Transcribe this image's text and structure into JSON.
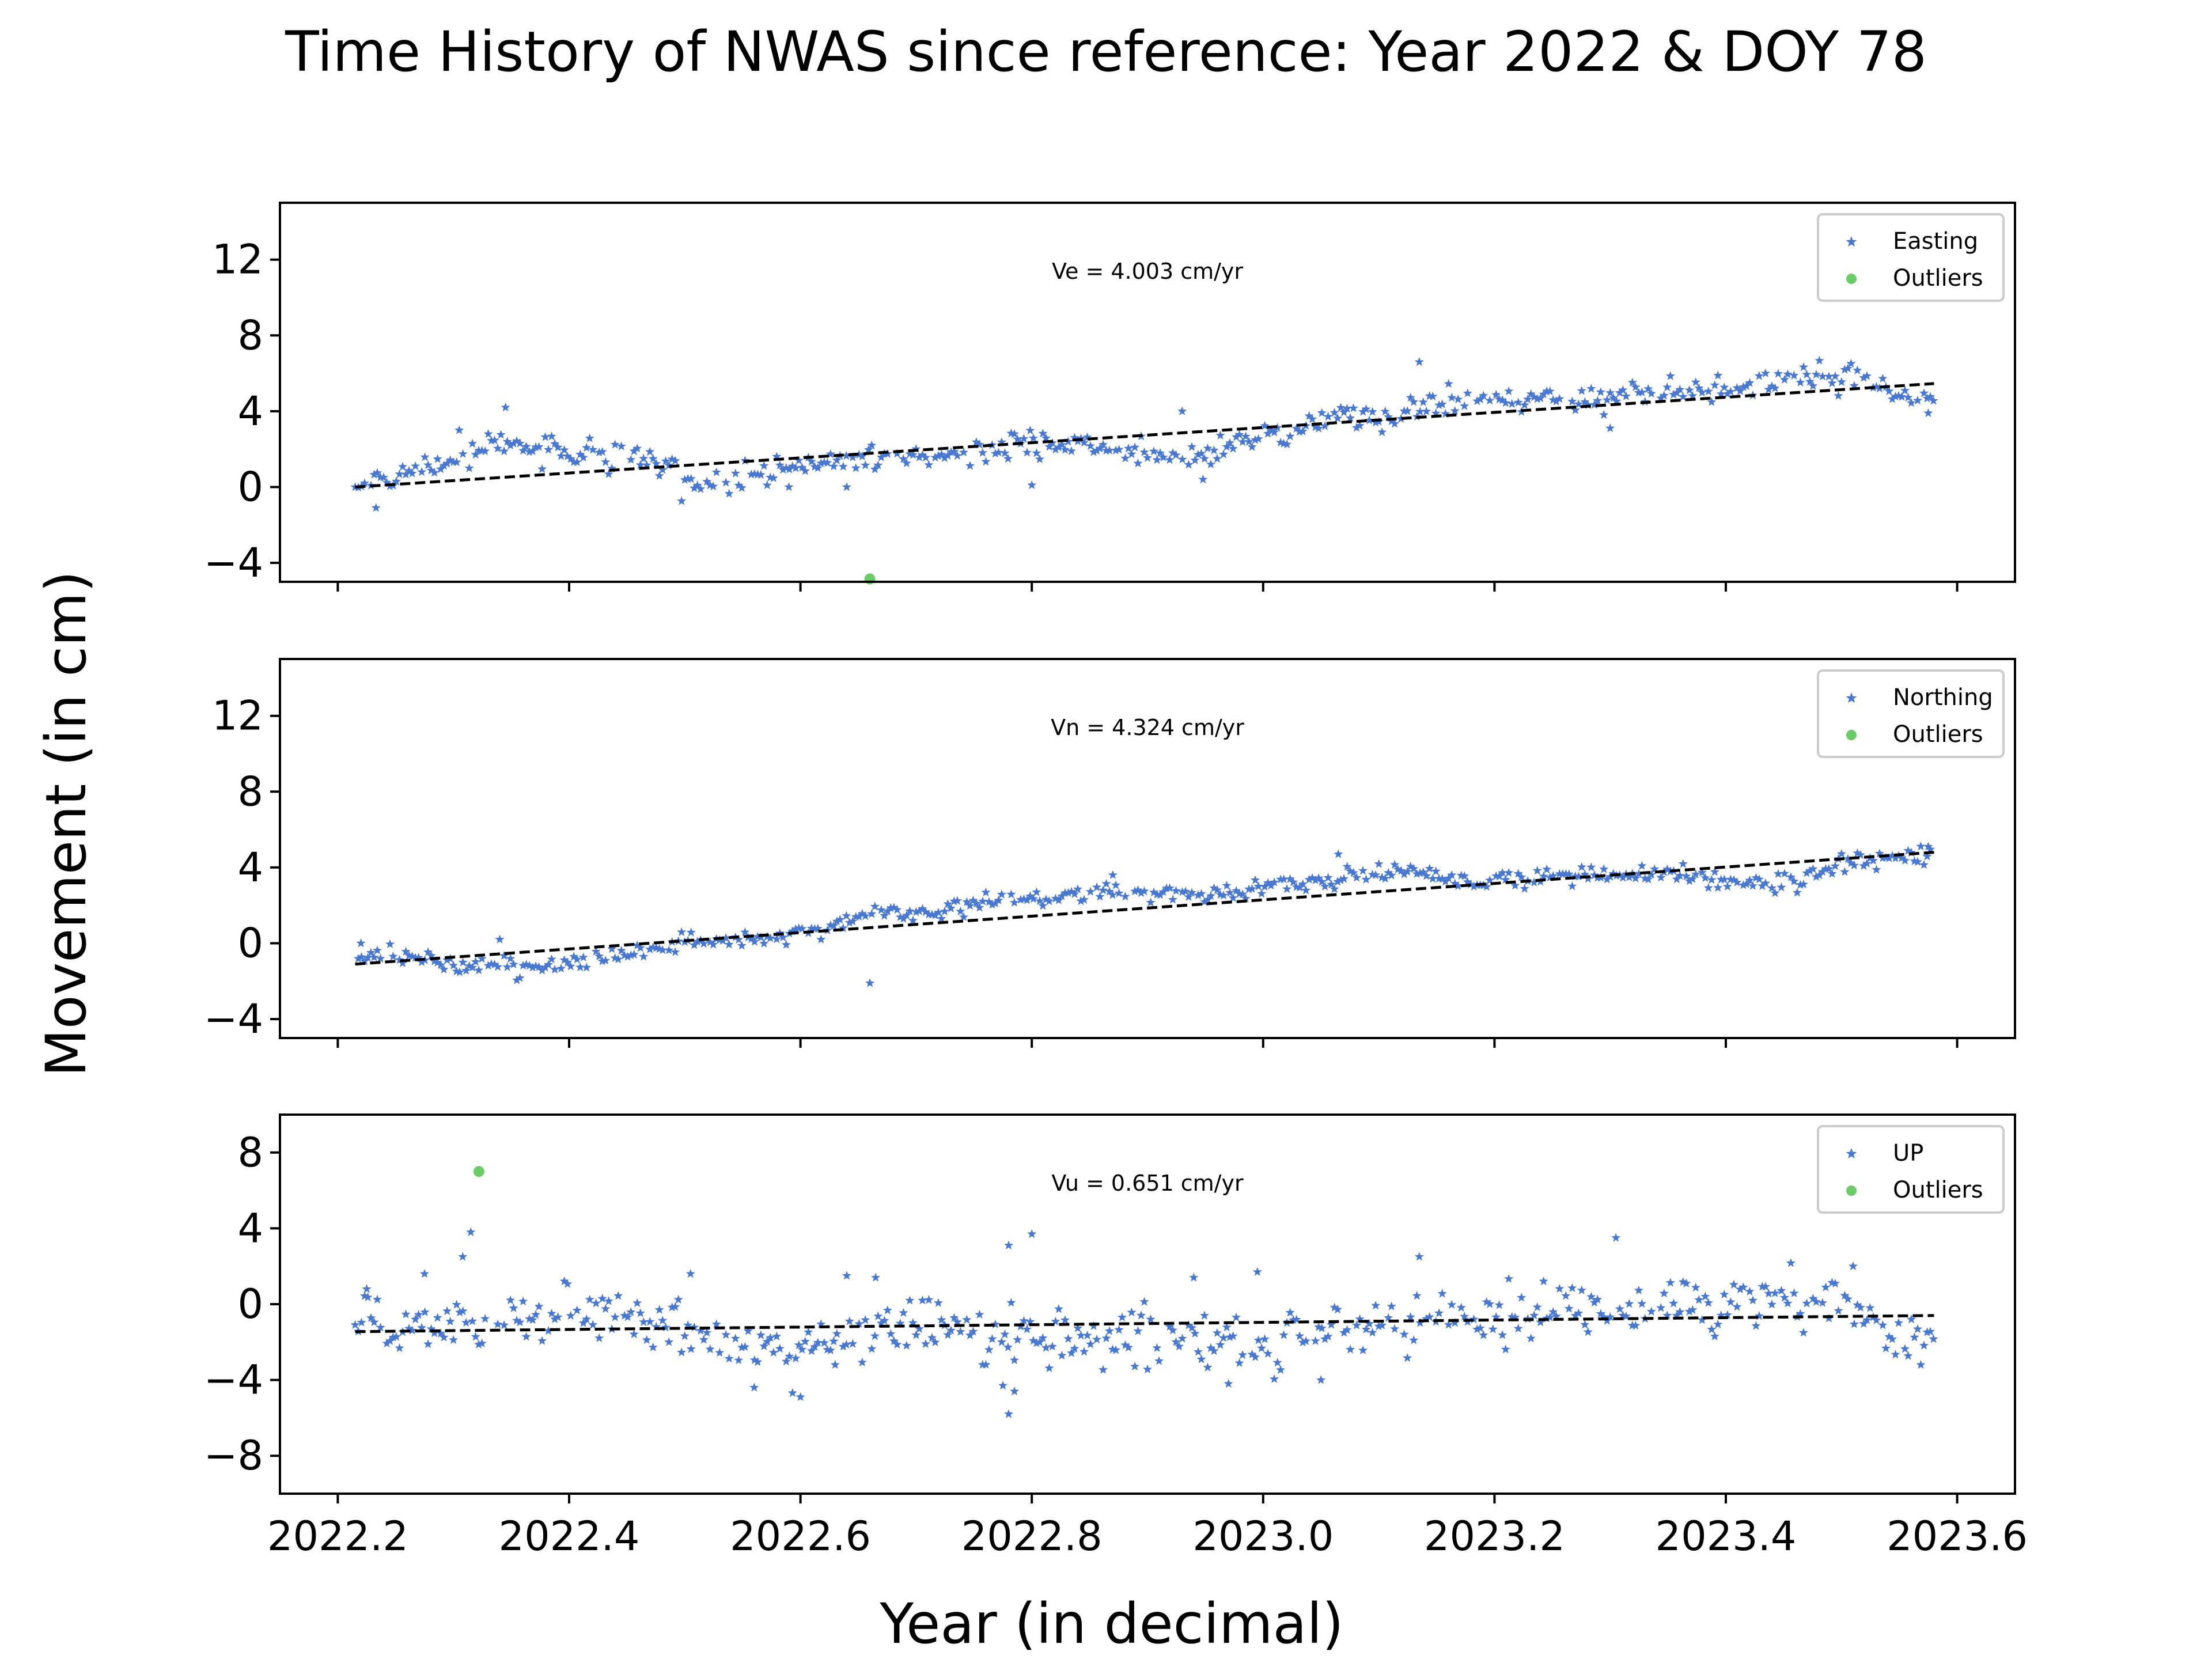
{
  "figure": {
    "title": "Time History of NWAS since reference: Year 2022 & DOY 78",
    "xlabel": "Year (in decimal)",
    "ylabel": "Movement (in cm)"
  },
  "colors": {
    "data": "#4878CF",
    "outlier": "#6ACC65",
    "trend": "#000000"
  },
  "chart_data": [
    {
      "type": "scatter",
      "name": "easting",
      "velocity_label": "Ve =  4.003 cm/yr",
      "legend": [
        "Easting",
        "Outliers"
      ],
      "legend_position": "top-right",
      "xlim": [
        2022.15,
        2023.65
      ],
      "ylim": [
        -5,
        15
      ],
      "x_ticks": [
        2022.2,
        2022.4,
        2022.6,
        2022.8,
        2023.0,
        2023.2,
        2023.4,
        2023.6
      ],
      "y_ticks": [
        -4,
        0,
        4,
        8,
        12
      ],
      "y_tick_labels": [
        "−4",
        "0",
        "4",
        "8",
        "12"
      ],
      "x_tick_labels": [],
      "trend": {
        "x": [
          2022.215,
          2023.58
        ],
        "y": [
          0.0,
          5.46
        ]
      },
      "anchors": [
        [
          2022.215,
          0.0
        ],
        [
          2022.25,
          0.5
        ],
        [
          2022.3,
          1.3
        ],
        [
          2022.34,
          2.5
        ],
        [
          2022.38,
          1.9
        ],
        [
          2022.42,
          1.8
        ],
        [
          2022.46,
          1.6
        ],
        [
          2022.5,
          0.4
        ],
        [
          2022.54,
          0.3
        ],
        [
          2022.58,
          0.9
        ],
        [
          2022.62,
          1.3
        ],
        [
          2022.66,
          1.6
        ],
        [
          2022.7,
          1.5
        ],
        [
          2022.74,
          1.8
        ],
        [
          2022.78,
          2.2
        ],
        [
          2022.82,
          2.2
        ],
        [
          2022.86,
          2.0
        ],
        [
          2022.9,
          1.8
        ],
        [
          2022.94,
          1.4
        ],
        [
          2022.98,
          2.6
        ],
        [
          2023.02,
          2.6
        ],
        [
          2023.06,
          3.8
        ],
        [
          2023.1,
          3.5
        ],
        [
          2023.14,
          4.2
        ],
        [
          2023.18,
          4.6
        ],
        [
          2023.22,
          4.6
        ],
        [
          2023.26,
          4.6
        ],
        [
          2023.3,
          4.8
        ],
        [
          2023.34,
          4.9
        ],
        [
          2023.38,
          5.4
        ],
        [
          2023.42,
          5.5
        ],
        [
          2023.46,
          5.6
        ],
        [
          2023.5,
          5.8
        ],
        [
          2023.54,
          5.2
        ],
        [
          2023.58,
          4.9
        ]
      ],
      "noise": 0.35,
      "extra_points": [
        [
          2022.233,
          -1.1
        ],
        [
          2022.345,
          4.2
        ],
        [
          2022.305,
          3.0
        ],
        [
          2023.135,
          6.6
        ],
        [
          2022.948,
          0.4
        ],
        [
          2022.93,
          4.0
        ],
        [
          2023.575,
          3.9
        ],
        [
          2022.8,
          0.1
        ],
        [
          2023.3,
          3.1
        ],
        [
          2022.64,
          0.0
        ],
        [
          2022.59,
          0.0
        ]
      ],
      "outliers": [
        [
          2022.66,
          -4.85
        ]
      ]
    },
    {
      "type": "scatter",
      "name": "northing",
      "velocity_label": "Vn =  4.324 cm/yr",
      "legend": [
        "Northing",
        "Outliers"
      ],
      "legend_position": "top-right",
      "xlim": [
        2022.15,
        2023.65
      ],
      "ylim": [
        -5,
        15
      ],
      "x_ticks": [
        2022.2,
        2022.4,
        2022.6,
        2022.8,
        2023.0,
        2023.2,
        2023.4,
        2023.6
      ],
      "y_ticks": [
        -4,
        0,
        4,
        8,
        12
      ],
      "y_tick_labels": [
        "−4",
        "0",
        "4",
        "8",
        "12"
      ],
      "x_tick_labels": [],
      "trend": {
        "x": [
          2022.215,
          2023.58
        ],
        "y": [
          -1.1,
          4.8
        ]
      },
      "anchors": [
        [
          2022.215,
          -0.6
        ],
        [
          2022.25,
          -0.7
        ],
        [
          2022.3,
          -1.0
        ],
        [
          2022.34,
          -1.2
        ],
        [
          2022.38,
          -1.2
        ],
        [
          2022.42,
          -1.0
        ],
        [
          2022.46,
          -0.5
        ],
        [
          2022.5,
          0.1
        ],
        [
          2022.54,
          0.2
        ],
        [
          2022.58,
          0.3
        ],
        [
          2022.62,
          0.8
        ],
        [
          2022.66,
          1.5
        ],
        [
          2022.7,
          1.6
        ],
        [
          2022.74,
          2.0
        ],
        [
          2022.78,
          2.5
        ],
        [
          2022.82,
          2.3
        ],
        [
          2022.86,
          2.9
        ],
        [
          2022.9,
          2.6
        ],
        [
          2022.94,
          2.6
        ],
        [
          2022.98,
          2.7
        ],
        [
          2023.02,
          3.1
        ],
        [
          2023.06,
          3.4
        ],
        [
          2023.1,
          3.8
        ],
        [
          2023.14,
          3.6
        ],
        [
          2023.18,
          3.2
        ],
        [
          2023.22,
          3.4
        ],
        [
          2023.26,
          3.6
        ],
        [
          2023.3,
          3.4
        ],
        [
          2023.34,
          3.8
        ],
        [
          2023.38,
          3.4
        ],
        [
          2023.42,
          3.2
        ],
        [
          2023.46,
          3.3
        ],
        [
          2023.5,
          4.3
        ],
        [
          2023.54,
          4.5
        ],
        [
          2023.58,
          4.7
        ]
      ],
      "noise": 0.25,
      "extra_points": [
        [
          2022.22,
          0.0
        ],
        [
          2022.66,
          -2.1
        ],
        [
          2022.34,
          0.2
        ],
        [
          2023.065,
          4.7
        ],
        [
          2022.87,
          3.6
        ],
        [
          2023.575,
          5.1
        ]
      ],
      "outliers": []
    },
    {
      "type": "scatter",
      "name": "up",
      "velocity_label": "Vu =  0.651 cm/yr",
      "legend": [
        "UP",
        "Outliers"
      ],
      "legend_position": "top-right",
      "xlim": [
        2022.15,
        2023.65
      ],
      "ylim": [
        -10,
        10
      ],
      "x_ticks": [
        2022.2,
        2022.4,
        2022.6,
        2022.8,
        2023.0,
        2023.2,
        2023.4,
        2023.6
      ],
      "y_ticks": [
        -8,
        -4,
        0,
        4,
        8
      ],
      "y_tick_labels": [
        "−8",
        "−4",
        "0",
        "4",
        "8"
      ],
      "x_tick_labels": [
        "2022.2",
        "2022.4",
        "2022.6",
        "2022.8",
        "2023.0",
        "2023.2",
        "2023.4",
        "2023.6"
      ],
      "trend": {
        "x": [
          2022.215,
          2023.58
        ],
        "y": [
          -1.45,
          -0.6
        ]
      },
      "anchors": [
        [
          2022.215,
          -0.6
        ],
        [
          2022.25,
          -1.0
        ],
        [
          2022.3,
          -1.0
        ],
        [
          2022.34,
          -0.6
        ],
        [
          2022.38,
          -0.8
        ],
        [
          2022.42,
          -0.6
        ],
        [
          2022.46,
          -1.0
        ],
        [
          2022.5,
          -1.2
        ],
        [
          2022.54,
          -2.3
        ],
        [
          2022.58,
          -2.6
        ],
        [
          2022.62,
          -2.0
        ],
        [
          2022.66,
          -1.2
        ],
        [
          2022.7,
          -1.0
        ],
        [
          2022.74,
          -1.5
        ],
        [
          2022.78,
          -1.8
        ],
        [
          2022.82,
          -1.6
        ],
        [
          2022.86,
          -2.0
        ],
        [
          2022.9,
          -1.0
        ],
        [
          2022.94,
          -2.0
        ],
        [
          2022.98,
          -2.4
        ],
        [
          2023.02,
          -1.8
        ],
        [
          2023.06,
          -1.6
        ],
        [
          2023.1,
          -1.4
        ],
        [
          2023.14,
          -0.6
        ],
        [
          2023.18,
          -0.4
        ],
        [
          2023.22,
          -0.6
        ],
        [
          2023.26,
          -0.2
        ],
        [
          2023.3,
          -0.4
        ],
        [
          2023.34,
          0.2
        ],
        [
          2023.38,
          0.0
        ],
        [
          2023.42,
          0.2
        ],
        [
          2023.46,
          0.4
        ],
        [
          2023.5,
          0.2
        ],
        [
          2023.54,
          -1.6
        ],
        [
          2023.58,
          -2.0
        ]
      ],
      "noise": 0.8,
      "extra_points": [
        [
          2022.315,
          3.8
        ],
        [
          2022.308,
          2.5
        ],
        [
          2022.275,
          1.6
        ],
        [
          2022.78,
          3.1
        ],
        [
          2022.8,
          3.7
        ],
        [
          2022.78,
          -5.8
        ],
        [
          2022.785,
          -4.6
        ],
        [
          2022.775,
          -4.3
        ],
        [
          2022.64,
          1.5
        ],
        [
          2022.665,
          1.4
        ],
        [
          2022.6,
          -4.9
        ],
        [
          2022.56,
          -4.4
        ],
        [
          2022.995,
          1.7
        ],
        [
          2022.94,
          1.4
        ],
        [
          2023.135,
          2.5
        ],
        [
          2023.305,
          3.5
        ],
        [
          2022.505,
          1.6
        ],
        [
          2022.225,
          0.8
        ],
        [
          2022.63,
          -3.2
        ],
        [
          2022.97,
          -4.2
        ],
        [
          2023.05,
          -4.0
        ],
        [
          2023.51,
          2.0
        ],
        [
          2022.91,
          -3.0
        ]
      ],
      "outliers": [
        [
          2022.322,
          7.0
        ]
      ]
    }
  ]
}
